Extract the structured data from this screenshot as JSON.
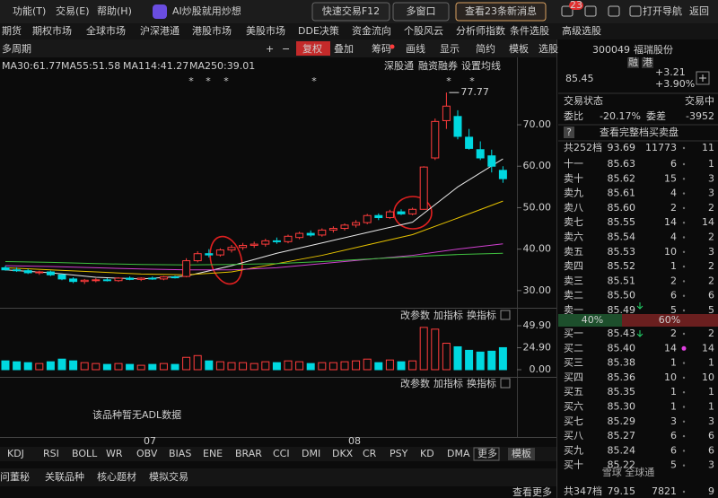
{
  "topbar": {
    "menu": [
      "功能(T)",
      "交易(E)",
      "帮助(H)"
    ],
    "ai": "AI炒股就用炒想",
    "buttons": [
      "快速交易F12",
      "多窗口",
      "查看23条新消息"
    ],
    "badge": "23",
    "nav": [
      "打开导航",
      "返回"
    ]
  },
  "navbar": [
    "期货",
    "期权市场",
    "全球市场",
    "沪深港通",
    "港股市场",
    "美股市场",
    "DDE决策",
    "资金流向",
    "个股风云",
    "分析师指数",
    "条件选股",
    "高级选股"
  ],
  "toolbar": {
    "period": "多周期",
    "buttons": [
      "+",
      "−",
      "复权",
      "叠加",
      "筹码",
      "画线",
      "显示",
      "简约",
      "模板",
      "选股"
    ]
  },
  "links": [
    "深股通",
    "融资融券",
    "设置均线"
  ],
  "kline": {
    "type": "candlestick",
    "up_color": "#ff3c3c",
    "down_color": "#00d8e0",
    "markers": [
      "*",
      "*",
      "*",
      "*",
      "*",
      "*"
    ],
    "peak": 77.77,
    "ylim": [
      26.5,
      81.7
    ],
    "yticks": [
      {
        "value": 70,
        "label": "70.00"
      },
      {
        "value": 60,
        "label": "60.00"
      },
      {
        "value": 50,
        "label": "50.00"
      },
      {
        "value": 40,
        "label": "40.00"
      },
      {
        "value": 30,
        "label": "30.00"
      }
    ],
    "candles": [
      [
        35.5,
        36,
        34.8,
        35
      ],
      [
        35,
        35.6,
        34.5,
        34.8
      ],
      [
        34.8,
        35.2,
        34,
        34.3
      ],
      [
        34.3,
        34.8,
        33.8,
        34.5
      ],
      [
        34.5,
        34.8,
        33.5,
        33.8
      ],
      [
        33.8,
        34,
        32.5,
        32.8
      ],
      [
        32.8,
        33.2,
        31.8,
        32.2
      ],
      [
        32.2,
        32.8,
        31.6,
        32.5
      ],
      [
        32.5,
        33,
        32,
        32.6
      ],
      [
        32.6,
        33,
        32.2,
        32.4
      ],
      [
        32.4,
        33.2,
        32.1,
        33
      ],
      [
        33,
        33.4,
        32.5,
        32.7
      ],
      [
        32.7,
        33.2,
        32.3,
        33
      ],
      [
        33,
        33.4,
        32.6,
        32.8
      ],
      [
        32.8,
        33.5,
        32.5,
        33.3
      ],
      [
        33.3,
        33.6,
        32.9,
        33.1
      ],
      [
        33.4,
        37.8,
        33.2,
        37.2
      ],
      [
        37.2,
        39.5,
        36.8,
        38.9
      ],
      [
        38.9,
        40,
        38,
        38.6
      ],
      [
        38.6,
        40.2,
        38.2,
        39.8
      ],
      [
        39.8,
        41,
        39.2,
        40.4
      ],
      [
        40.4,
        41.5,
        39.8,
        40.9
      ],
      [
        40.9,
        41.8,
        40.3,
        41.2
      ],
      [
        41.2,
        42.5,
        40.6,
        42
      ],
      [
        42,
        42.8,
        41.3,
        41.8
      ],
      [
        41.8,
        43.5,
        41.4,
        43.1
      ],
      [
        42.8,
        44.2,
        42.4,
        43.8
      ],
      [
        43.8,
        44.5,
        43,
        43.4
      ],
      [
        43.4,
        45,
        43,
        44.6
      ],
      [
        44.6,
        45.5,
        44,
        45
      ],
      [
        45,
        46.2,
        44.5,
        45.8
      ],
      [
        45.8,
        47,
        45.2,
        46.4
      ],
      [
        46.4,
        48.5,
        46,
        48.1
      ],
      [
        48.1,
        48.6,
        47,
        47.6
      ],
      [
        47.6,
        49.5,
        47.3,
        49
      ],
      [
        49,
        49.6,
        48.2,
        48.5
      ],
      [
        48.5,
        50,
        48.2,
        49.6
      ],
      [
        49.6,
        60,
        49.5,
        59.8
      ],
      [
        62,
        71.5,
        61.5,
        70.8
      ],
      [
        71,
        77.77,
        69,
        74.5
      ],
      [
        72,
        73.5,
        66.5,
        67.2
      ],
      [
        67,
        69,
        64,
        64.3
      ],
      [
        64,
        66,
        61.5,
        62
      ],
      [
        62.5,
        64,
        58.5,
        60
      ],
      [
        59,
        60,
        56,
        57
      ]
    ],
    "ma": {
      "x": [
        0,
        4,
        8,
        12,
        16,
        20,
        24,
        28,
        32,
        36,
        40,
        44
      ],
      "series": [
        {
          "label": "MA30:61.77",
          "color": "#e8e8e8",
          "values": [
            35,
            34.3,
            33.2,
            32.8,
            33.5,
            36,
            39,
            41.5,
            44,
            46.5,
            55,
            61.77
          ]
        },
        {
          "label": "MA55:51.58",
          "color": "#e6c200",
          "values": [
            35.5,
            35,
            34.5,
            34,
            33.8,
            34.5,
            36.5,
            38.5,
            41,
            43.5,
            47.5,
            51.58
          ]
        },
        {
          "label": "MA114:41.27",
          "color": "#d040d0",
          "values": [
            36,
            35.8,
            35.5,
            35.2,
            35,
            35,
            35.5,
            36.5,
            37.5,
            38.5,
            40,
            41.27
          ]
        },
        {
          "label": "MA250:39.01",
          "color": "#40c040",
          "values": [
            37,
            36.8,
            36.5,
            36.3,
            36.2,
            36.3,
            36.5,
            37,
            37.6,
            38.2,
            38.7,
            39.01
          ]
        }
      ]
    }
  },
  "volume": {
    "ylim": [
      0,
      49.9
    ],
    "yticks": [
      {
        "value": 49.9,
        "label": "49.90"
      },
      {
        "value": 24.9,
        "label": "24.90"
      },
      {
        "value": 0,
        "label": "0.00"
      }
    ],
    "values": [
      10,
      9,
      8,
      7,
      9,
      12,
      10,
      8,
      7,
      6,
      7,
      6,
      5,
      6,
      7,
      6,
      14,
      16,
      10,
      9,
      8,
      8,
      7,
      9,
      8,
      10,
      9,
      7,
      8,
      8,
      9,
      10,
      12,
      8,
      11,
      9,
      10,
      48,
      46,
      30,
      26,
      22,
      20,
      21,
      25
    ],
    "tools": [
      "改参数",
      "加指标",
      "换指标"
    ]
  },
  "adl": {
    "tools": [
      "改参数",
      "加指标",
      "换指标"
    ],
    "message": "该品种暂无ADL数据"
  },
  "xaxis": [
    "07",
    "08"
  ],
  "tabs": [
    "KDJ",
    "RSI",
    "BOLL",
    "WR",
    "OBV",
    "BIAS",
    "ENE",
    "BRAR",
    "CCI",
    "DMI",
    "DKX",
    "CR",
    "PSY",
    "KD",
    "DMA",
    "更多",
    "模板"
  ],
  "bottom": {
    "items": [
      "问董秘",
      "关联品种",
      "核心题材",
      "模拟交易"
    ],
    "more": "查看更多"
  },
  "quote": {
    "code": "300049",
    "name": "福瑞股份",
    "tags": [
      "融",
      "港"
    ],
    "price": "85.45",
    "change": "+3.21",
    "pct": "+3.90%",
    "status_label": "交易状态",
    "status": "交易中",
    "wb_label": "委比",
    "wb": "-20.17%",
    "wc_label": "委差",
    "wc": "-3952",
    "help": "?",
    "full": "查看完整档买卖盘",
    "ask_total": [
      "共252档",
      "93.69",
      "11773",
      "11"
    ],
    "asks": [
      [
        "十一",
        "85.63",
        "6",
        "1"
      ],
      [
        "卖十",
        "85.62",
        "15",
        "3"
      ],
      [
        "卖九",
        "85.61",
        "4",
        "3"
      ],
      [
        "卖八",
        "85.60",
        "2",
        "2"
      ],
      [
        "卖七",
        "85.55",
        "14",
        "14"
      ],
      [
        "卖六",
        "85.54",
        "4",
        "2"
      ],
      [
        "卖五",
        "85.53",
        "10",
        "3"
      ],
      [
        "卖四",
        "85.52",
        "1",
        "2"
      ],
      [
        "卖三",
        "85.51",
        "2",
        "2"
      ],
      [
        "卖二",
        "85.50",
        "6",
        "6"
      ],
      [
        "卖一",
        "85.49",
        "5",
        "5"
      ]
    ],
    "ratio": [
      "40%",
      "60%"
    ],
    "bids": [
      [
        "买一",
        "85.43",
        "2",
        "2"
      ],
      [
        "买二",
        "85.40",
        "14",
        "14"
      ],
      [
        "买三",
        "85.38",
        "1",
        "1"
      ],
      [
        "买四",
        "85.36",
        "10",
        "10"
      ],
      [
        "买五",
        "85.35",
        "1",
        "1"
      ],
      [
        "买六",
        "85.30",
        "1",
        "1"
      ],
      [
        "买七",
        "85.29",
        "3",
        "3"
      ],
      [
        "买八",
        "85.27",
        "6",
        "6"
      ],
      [
        "买九",
        "85.24",
        "6",
        "6"
      ],
      [
        "买十",
        "85.22",
        "5",
        "3"
      ]
    ],
    "bid_total": [
      "共347档",
      "79.15",
      "7821",
      "9"
    ]
  },
  "watermark": "雪球 全球通"
}
